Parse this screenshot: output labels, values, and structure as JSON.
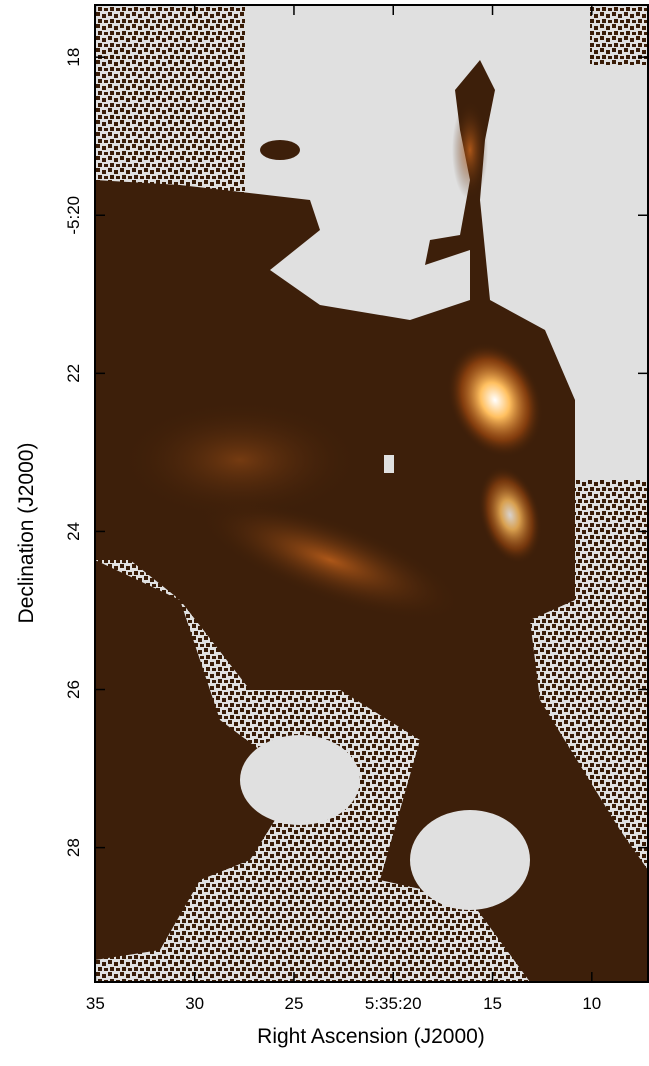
{
  "chart_data": {
    "type": "image",
    "xlabel": "Right Ascension (J2000)",
    "ylabel": "Declination (J2000)",
    "xlim": [
      35.02,
      7.17
    ],
    "ylim": [
      29.7,
      17.34
    ],
    "xticks": [
      35,
      30,
      25,
      {
        "value": 20,
        "label": "5:35:20"
      },
      15,
      10
    ],
    "yticks": [
      18,
      {
        "value": 20,
        "label": "-5:20"
      },
      22,
      24,
      26,
      28
    ]
  }
}
